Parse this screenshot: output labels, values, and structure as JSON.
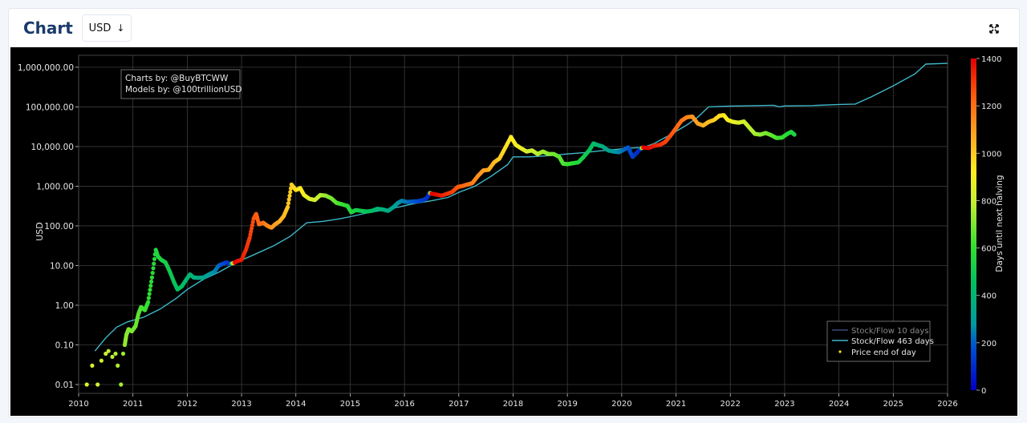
{
  "header": {
    "title": "Chart",
    "currency": "USD",
    "currency_arrow": "↓",
    "expand_icon": "expand-icon"
  },
  "annotation": {
    "line1": "Charts by: @BuyBTCWW",
    "line2": "Models by: @100trillionUSD"
  },
  "legend": {
    "items": [
      "Stock/Flow 10 days",
      "Stock/Flow 463 days",
      "Price end of day"
    ]
  },
  "colors": {
    "background": "#000000",
    "sf10": "#3a4a7a",
    "sf463": "#3fb8c9",
    "price_dot": "#f4e01c",
    "title": "#1b3a6b"
  },
  "chart_data": {
    "type": "scatter",
    "ylabel": "USD",
    "colorbar_label": "Days until next halving",
    "y_scale": "log",
    "ylim": [
      0.006,
      2000000
    ],
    "xlim": [
      2010,
      2026
    ],
    "x_ticks": [
      2010,
      2011,
      2012,
      2013,
      2014,
      2015,
      2016,
      2017,
      2018,
      2019,
      2020,
      2021,
      2022,
      2023,
      2024,
      2025,
      2026
    ],
    "x_tick_labels": [
      "2010",
      "2011",
      "2012",
      "2013",
      "2014",
      "2015",
      "2016",
      "2017",
      "2018",
      "2019",
      "2020",
      "2021",
      "2022",
      "2023",
      "2024",
      "2025",
      "2026"
    ],
    "y_ticks": [
      0.01,
      0.1,
      1,
      10,
      100,
      1000,
      10000,
      100000,
      1000000
    ],
    "y_tick_labels": [
      "0.01",
      "0.10",
      "1.00",
      "10.00",
      "100.00",
      "1,000.00",
      "10,000.00",
      "100,000.00",
      "1,000,000.00"
    ],
    "colorbar_ticks": [
      0,
      200,
      400,
      600,
      800,
      1000,
      1200,
      1400
    ],
    "colorbar_range": [
      0,
      1400
    ],
    "grid": true,
    "legend_position": "bottom-right",
    "series": [
      {
        "name": "Stock/Flow 463 days",
        "type": "line",
        "points": [
          [
            2010.3,
            0.07
          ],
          [
            2010.5,
            0.15
          ],
          [
            2010.7,
            0.28
          ],
          [
            2010.9,
            0.38
          ],
          [
            2011.2,
            0.5
          ],
          [
            2011.5,
            0.8
          ],
          [
            2011.8,
            1.5
          ],
          [
            2012.0,
            2.5
          ],
          [
            2012.3,
            4.5
          ],
          [
            2012.6,
            7
          ],
          [
            2012.9,
            12
          ],
          [
            2013.2,
            18
          ],
          [
            2013.6,
            32
          ],
          [
            2013.9,
            55
          ],
          [
            2014.2,
            120
          ],
          [
            2014.5,
            130
          ],
          [
            2014.8,
            150
          ],
          [
            2015.0,
            170
          ],
          [
            2015.3,
            210
          ],
          [
            2015.6,
            250
          ],
          [
            2015.9,
            300
          ],
          [
            2016.2,
            370
          ],
          [
            2016.5,
            430
          ],
          [
            2016.8,
            520
          ],
          [
            2017.0,
            700
          ],
          [
            2017.3,
            1000
          ],
          [
            2017.6,
            1800
          ],
          [
            2017.9,
            3500
          ],
          [
            2018.0,
            5500
          ],
          [
            2018.3,
            5500
          ],
          [
            2018.6,
            5800
          ],
          [
            2019.0,
            6500
          ],
          [
            2019.3,
            7000
          ],
          [
            2019.6,
            7800
          ],
          [
            2019.9,
            8500
          ],
          [
            2020.2,
            9200
          ],
          [
            2020.4,
            9500
          ],
          [
            2020.6,
            12000
          ],
          [
            2020.9,
            20000
          ],
          [
            2021.2,
            35000
          ],
          [
            2021.4,
            55000
          ],
          [
            2021.6,
            100000
          ],
          [
            2022.0,
            105000
          ],
          [
            2022.5,
            108000
          ],
          [
            2022.8,
            110000
          ],
          [
            2022.9,
            100000
          ],
          [
            2023.0,
            106000
          ],
          [
            2023.5,
            108000
          ],
          [
            2024.0,
            115000
          ],
          [
            2024.3,
            118000
          ],
          [
            2024.6,
            180000
          ],
          [
            2025.0,
            340000
          ],
          [
            2025.4,
            680000
          ],
          [
            2025.6,
            1200000
          ],
          [
            2026.0,
            1250000
          ]
        ]
      },
      {
        "name": "Price end of day",
        "type": "scatter",
        "points": [
          [
            2010.15,
            0.01,
            850
          ],
          [
            2010.25,
            0.03,
            840
          ],
          [
            2010.35,
            0.01,
            820
          ],
          [
            2010.42,
            0.04,
            810
          ],
          [
            2010.5,
            0.06,
            800
          ],
          [
            2010.55,
            0.07,
            790
          ],
          [
            2010.62,
            0.05,
            780
          ],
          [
            2010.68,
            0.06,
            770
          ],
          [
            2010.72,
            0.03,
            760
          ],
          [
            2010.78,
            0.01,
            750
          ],
          [
            2010.82,
            0.06,
            740
          ],
          [
            2010.85,
            0.1,
            730
          ],
          [
            2010.88,
            0.18,
            720
          ],
          [
            2010.92,
            0.25,
            710
          ],
          [
            2010.98,
            0.22,
            700
          ],
          [
            2011.05,
            0.3,
            680
          ],
          [
            2011.1,
            0.6,
            660
          ],
          [
            2011.15,
            0.9,
            640
          ],
          [
            2011.22,
            0.75,
            620
          ],
          [
            2011.28,
            1.2,
            600
          ],
          [
            2011.35,
            5,
            580
          ],
          [
            2011.42,
            25,
            560
          ],
          [
            2011.46,
            17,
            550
          ],
          [
            2011.52,
            14,
            540
          ],
          [
            2011.6,
            12,
            520
          ],
          [
            2011.68,
            7,
            500
          ],
          [
            2011.75,
            4,
            480
          ],
          [
            2011.82,
            2.5,
            460
          ],
          [
            2011.9,
            3,
            440
          ],
          [
            2012.0,
            4.8,
            420
          ],
          [
            2012.05,
            6,
            400
          ],
          [
            2012.12,
            5,
            380
          ],
          [
            2012.2,
            4.9,
            360
          ],
          [
            2012.3,
            5,
            330
          ],
          [
            2012.4,
            6,
            300
          ],
          [
            2012.5,
            7,
            260
          ],
          [
            2012.58,
            10,
            220
          ],
          [
            2012.65,
            11,
            180
          ],
          [
            2012.72,
            12,
            140
          ],
          [
            2012.8,
            11,
            110
          ],
          [
            2012.88,
            12,
            1400
          ],
          [
            2012.92,
            13,
            1380
          ],
          [
            2013.0,
            14,
            1350
          ],
          [
            2013.08,
            25,
            1320
          ],
          [
            2013.15,
            50,
            1290
          ],
          [
            2013.22,
            150,
            1260
          ],
          [
            2013.27,
            200,
            1240
          ],
          [
            2013.32,
            110,
            1220
          ],
          [
            2013.4,
            120,
            1190
          ],
          [
            2013.48,
            100,
            1160
          ],
          [
            2013.55,
            90,
            1130
          ],
          [
            2013.62,
            110,
            1100
          ],
          [
            2013.7,
            130,
            1070
          ],
          [
            2013.78,
            180,
            1040
          ],
          [
            2013.85,
            300,
            1010
          ],
          [
            2013.92,
            1100,
            990
          ],
          [
            2014.0,
            800,
            960
          ],
          [
            2014.08,
            900,
            930
          ],
          [
            2014.15,
            600,
            900
          ],
          [
            2014.25,
            480,
            860
          ],
          [
            2014.35,
            450,
            820
          ],
          [
            2014.45,
            600,
            780
          ],
          [
            2014.55,
            580,
            740
          ],
          [
            2014.65,
            500,
            700
          ],
          [
            2014.75,
            380,
            660
          ],
          [
            2014.85,
            350,
            620
          ],
          [
            2014.95,
            320,
            580
          ],
          [
            2015.02,
            220,
            560
          ],
          [
            2015.1,
            250,
            530
          ],
          [
            2015.2,
            240,
            500
          ],
          [
            2015.3,
            230,
            470
          ],
          [
            2015.4,
            240,
            440
          ],
          [
            2015.5,
            270,
            410
          ],
          [
            2015.6,
            260,
            380
          ],
          [
            2015.7,
            240,
            350
          ],
          [
            2015.8,
            300,
            320
          ],
          [
            2015.88,
            380,
            290
          ],
          [
            2015.95,
            430,
            260
          ],
          [
            2016.05,
            400,
            230
          ],
          [
            2016.15,
            410,
            200
          ],
          [
            2016.25,
            420,
            170
          ],
          [
            2016.35,
            450,
            140
          ],
          [
            2016.42,
            520,
            110
          ],
          [
            2016.46,
            680,
            80
          ],
          [
            2016.5,
            650,
            1400
          ],
          [
            2016.58,
            620,
            1380
          ],
          [
            2016.68,
            580,
            1350
          ],
          [
            2016.78,
            640,
            1320
          ],
          [
            2016.88,
            720,
            1290
          ],
          [
            2016.98,
            960,
            1250
          ],
          [
            2017.05,
            1000,
            1230
          ],
          [
            2017.15,
            1100,
            1200
          ],
          [
            2017.25,
            1200,
            1170
          ],
          [
            2017.35,
            1800,
            1130
          ],
          [
            2017.45,
            2500,
            1100
          ],
          [
            2017.55,
            2600,
            1070
          ],
          [
            2017.65,
            4000,
            1040
          ],
          [
            2017.75,
            5000,
            1000
          ],
          [
            2017.85,
            9000,
            960
          ],
          [
            2017.96,
            17500,
            930
          ],
          [
            2018.05,
            11000,
            900
          ],
          [
            2018.15,
            9000,
            870
          ],
          [
            2018.25,
            7500,
            840
          ],
          [
            2018.35,
            8000,
            810
          ],
          [
            2018.45,
            6500,
            780
          ],
          [
            2018.55,
            7500,
            750
          ],
          [
            2018.65,
            6500,
            720
          ],
          [
            2018.75,
            6500,
            690
          ],
          [
            2018.85,
            5500,
            660
          ],
          [
            2018.92,
            3700,
            640
          ],
          [
            2019.0,
            3600,
            620
          ],
          [
            2019.1,
            3800,
            590
          ],
          [
            2019.2,
            4000,
            560
          ],
          [
            2019.3,
            5500,
            520
          ],
          [
            2019.4,
            8000,
            480
          ],
          [
            2019.48,
            12000,
            440
          ],
          [
            2019.55,
            11000,
            410
          ],
          [
            2019.65,
            10000,
            370
          ],
          [
            2019.75,
            8000,
            330
          ],
          [
            2019.85,
            7500,
            290
          ],
          [
            2019.95,
            7200,
            260
          ],
          [
            2020.05,
            8500,
            220
          ],
          [
            2020.12,
            9500,
            190
          ],
          [
            2020.2,
            5500,
            150
          ],
          [
            2020.28,
            7000,
            110
          ],
          [
            2020.35,
            9000,
            80
          ],
          [
            2020.4,
            9500,
            1400
          ],
          [
            2020.5,
            9200,
            1380
          ],
          [
            2020.6,
            10500,
            1350
          ],
          [
            2020.7,
            11000,
            1320
          ],
          [
            2020.8,
            13000,
            1290
          ],
          [
            2020.9,
            19000,
            1260
          ],
          [
            2021.0,
            29000,
            1220
          ],
          [
            2021.1,
            45000,
            1190
          ],
          [
            2021.2,
            55000,
            1160
          ],
          [
            2021.3,
            57000,
            1120
          ],
          [
            2021.4,
            38000,
            1090
          ],
          [
            2021.5,
            34000,
            1060
          ],
          [
            2021.6,
            42000,
            1030
          ],
          [
            2021.7,
            47000,
            1000
          ],
          [
            2021.8,
            60000,
            960
          ],
          [
            2021.88,
            62000,
            940
          ],
          [
            2021.95,
            47000,
            910
          ],
          [
            2022.05,
            42000,
            880
          ],
          [
            2022.15,
            40000,
            850
          ],
          [
            2022.25,
            43000,
            820
          ],
          [
            2022.35,
            30000,
            790
          ],
          [
            2022.45,
            21000,
            760
          ],
          [
            2022.55,
            20000,
            730
          ],
          [
            2022.65,
            22000,
            700
          ],
          [
            2022.75,
            19500,
            670
          ],
          [
            2022.85,
            16500,
            640
          ],
          [
            2022.95,
            16800,
            610
          ],
          [
            2023.05,
            21000,
            580
          ],
          [
            2023.12,
            23500,
            560
          ],
          [
            2023.18,
            20000,
            540
          ]
        ]
      }
    ]
  }
}
